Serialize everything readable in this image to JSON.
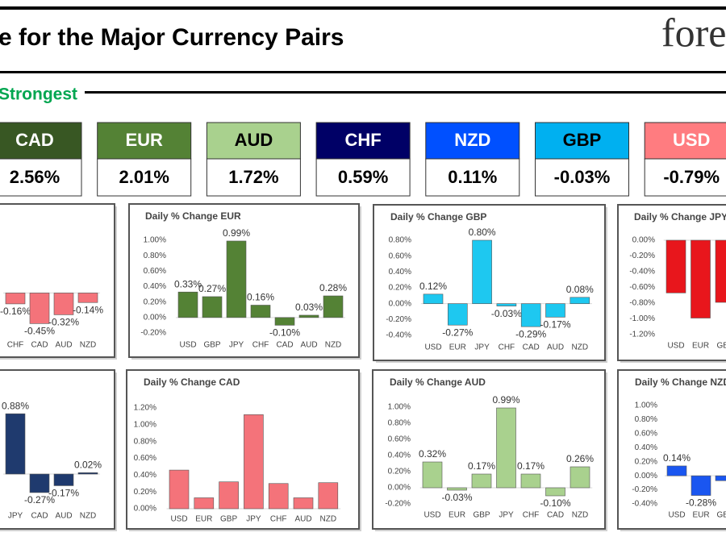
{
  "header": {
    "title": "e for the Major Currency Pairs",
    "logo": "fore"
  },
  "ranking": {
    "label": "Strongest",
    "currencies": [
      {
        "name": "CAD",
        "value": "2.56%",
        "color": "#385723",
        "text_color": "#ffffff"
      },
      {
        "name": "EUR",
        "value": "2.01%",
        "color": "#548235",
        "text_color": "#ffffff"
      },
      {
        "name": "AUD",
        "value": "1.72%",
        "color": "#a9d18e",
        "text_color": "#000000"
      },
      {
        "name": "CHF",
        "value": "0.59%",
        "color": "#000066",
        "text_color": "#ffffff"
      },
      {
        "name": "NZD",
        "value": "0.11%",
        "color": "#0050ff",
        "text_color": "#ffffff"
      },
      {
        "name": "GBP",
        "value": "-0.03%",
        "color": "#00b0f0",
        "text_color": "#000000"
      },
      {
        "name": "USD",
        "value": "-0.79%",
        "color": "#ff7c80",
        "text_color": "#ffffff"
      }
    ]
  },
  "chart_data": [
    {
      "type": "bar",
      "categories": [
        "CHF",
        "CAD",
        "AUD",
        "NZD"
      ],
      "values": [
        -0.16,
        -0.45,
        -0.32,
        -0.14
      ],
      "value_labels": [
        "-0.16%",
        "-0.45%",
        "-0.32%",
        "-0.14%"
      ],
      "color": "#f4737a",
      "ylim": [
        -0.6,
        0.8
      ]
    },
    {
      "type": "bar",
      "title": "Daily % Change EUR",
      "categories": [
        "USD",
        "GBP",
        "JPY",
        "CHF",
        "CAD",
        "AUD",
        "NZD"
      ],
      "values": [
        0.33,
        0.27,
        0.99,
        0.16,
        -0.1,
        0.03,
        0.28
      ],
      "value_labels": [
        "0.33%",
        "0.27%",
        "0.99%",
        "0.16%",
        "-0.10%",
        "0.03%",
        "0.28%"
      ],
      "color": "#548235",
      "ylim": [
        -0.2,
        1.0
      ],
      "yticks": [
        {
          "value": 1.0,
          "label": "1.00%"
        },
        {
          "value": 0.8,
          "label": "0.80%"
        },
        {
          "value": 0.6,
          "label": "0.60%"
        },
        {
          "value": 0.4,
          "label": "0.40%"
        },
        {
          "value": 0.2,
          "label": "0.20%"
        },
        {
          "value": 0,
          "label": "0.00%"
        },
        {
          "value": -0.2,
          "label": "-0.20%"
        }
      ]
    },
    {
      "type": "bar",
      "title": "Daily % Change GBP",
      "categories": [
        "USD",
        "EUR",
        "JPY",
        "CHF",
        "CAD",
        "AUD",
        "NZD"
      ],
      "values": [
        0.12,
        -0.27,
        0.8,
        -0.03,
        -0.29,
        -0.17,
        0.08
      ],
      "value_labels": [
        "0.12%",
        "-0.27%",
        "0.80%",
        "-0.03%",
        "-0.29%",
        "-0.17%",
        "0.08%"
      ],
      "color": "#1ec8f0",
      "ylim": [
        -0.4,
        0.8
      ],
      "yticks": [
        {
          "value": 0.8,
          "label": "0.80%"
        },
        {
          "value": 0.6,
          "label": "0.60%"
        },
        {
          "value": 0.4,
          "label": "0.40%"
        },
        {
          "value": 0.2,
          "label": "0.20%"
        },
        {
          "value": 0,
          "label": "0.00%"
        },
        {
          "value": -0.2,
          "label": "-0.20%"
        },
        {
          "value": -0.4,
          "label": "-0.40%"
        }
      ]
    },
    {
      "type": "bar",
      "title": "Daily % Change JPY",
      "categories": [
        "USD",
        "EUR",
        "GBP"
      ],
      "values": [
        -0.67,
        -0.99,
        -0.79
      ],
      "color": "#e8161c",
      "ylim": [
        -1.2,
        0
      ],
      "yticks": [
        {
          "value": 0,
          "label": "0.00%"
        },
        {
          "value": -0.2,
          "label": "-0.20%"
        },
        {
          "value": -0.4,
          "label": "-0.40%"
        },
        {
          "value": -0.6,
          "label": "-0.60%"
        },
        {
          "value": -0.8,
          "label": "-0.80%"
        },
        {
          "value": -1.0,
          "label": "-1.00%"
        },
        {
          "value": -1.2,
          "label": "-1.20%"
        }
      ]
    },
    {
      "type": "bar",
      "categories": [
        "JPY",
        "CAD",
        "AUD",
        "NZD"
      ],
      "values": [
        0.88,
        -0.27,
        -0.17,
        0.02
      ],
      "value_labels": [
        "0.88%",
        "-0.27%",
        "-0.17%",
        "0.02%"
      ],
      "color": "#1f3a6e",
      "ylim": [
        -0.4,
        1.0
      ]
    },
    {
      "type": "bar",
      "title": "Daily % Change CAD",
      "categories": [
        "USD",
        "EUR",
        "GBP",
        "JPY",
        "CHF",
        "AUD",
        "NZD"
      ],
      "values": [
        0.46,
        0.13,
        0.32,
        1.12,
        0.3,
        0.13,
        0.31
      ],
      "color": "#f4737a",
      "ylim": [
        0,
        1.2
      ],
      "yticks": [
        {
          "value": 1.2,
          "label": "1.20%"
        },
        {
          "value": 1.0,
          "label": "1.00%"
        },
        {
          "value": 0.8,
          "label": "0.80%"
        },
        {
          "value": 0.6,
          "label": "0.60%"
        },
        {
          "value": 0.4,
          "label": "0.40%"
        },
        {
          "value": 0.2,
          "label": "0.20%"
        },
        {
          "value": 0,
          "label": "0.00%"
        }
      ]
    },
    {
      "type": "bar",
      "title": "Daily % Change AUD",
      "categories": [
        "USD",
        "EUR",
        "GBP",
        "JPY",
        "CHF",
        "CAD",
        "NZD"
      ],
      "values": [
        0.32,
        -0.03,
        0.17,
        0.99,
        0.17,
        -0.1,
        0.26
      ],
      "value_labels": [
        "0.32%",
        "-0.03%",
        "0.17%",
        "0.99%",
        "0.17%",
        "-0.10%",
        "0.26%"
      ],
      "color": "#a9d18e",
      "ylim": [
        -0.2,
        1.0
      ],
      "yticks": [
        {
          "value": 1.0,
          "label": "1.00%"
        },
        {
          "value": 0.8,
          "label": "0.80%"
        },
        {
          "value": 0.6,
          "label": "0.60%"
        },
        {
          "value": 0.4,
          "label": "0.40%"
        },
        {
          "value": 0.2,
          "label": "0.20%"
        },
        {
          "value": 0,
          "label": "0.00%"
        },
        {
          "value": -0.2,
          "label": "-0.20%"
        }
      ]
    },
    {
      "type": "bar",
      "title": "Daily % Change NZD",
      "categories": [
        "USD",
        "EUR",
        "GBP"
      ],
      "values": [
        0.14,
        -0.28,
        -0.07
      ],
      "value_labels": [
        "0.14%",
        "-0.28%",
        null
      ],
      "color": "#1a56f0",
      "ylim": [
        -0.4,
        1.0
      ],
      "yticks": [
        {
          "value": 1.0,
          "label": "1.00%"
        },
        {
          "value": 0.8,
          "label": "0.80%"
        },
        {
          "value": 0.6,
          "label": "0.60%"
        },
        {
          "value": 0.4,
          "label": "0.40%"
        },
        {
          "value": 0.2,
          "label": "0.20%"
        },
        {
          "value": 0,
          "label": "0.00%"
        },
        {
          "value": -0.2,
          "label": "-0.20%"
        },
        {
          "value": -0.4,
          "label": "-0.40%"
        }
      ]
    }
  ]
}
